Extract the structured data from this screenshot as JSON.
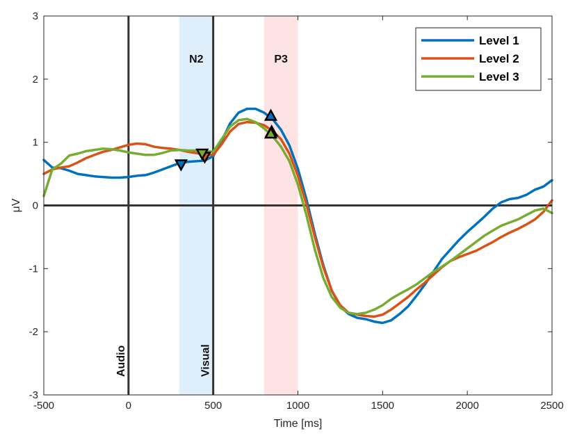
{
  "chart_data": {
    "type": "line",
    "xlabel": "Time [ms]",
    "ylabel": "μV",
    "xlim": [
      -500,
      2500
    ],
    "ylim": [
      -3,
      3
    ],
    "xticks": [
      -500,
      0,
      500,
      1000,
      1500,
      2000,
      2500
    ],
    "yticks": [
      -3,
      -2,
      -1,
      0,
      1,
      2,
      3
    ],
    "grid": false,
    "legend_position": "top-right",
    "bands": [
      {
        "label": "N2",
        "x_start": 300,
        "x_end": 500,
        "color": "#dfeefb"
      },
      {
        "label": "P3",
        "x_start": 800,
        "x_end": 1000,
        "color": "#fde3e3"
      }
    ],
    "events": [
      {
        "label": "Audio",
        "x": 0
      },
      {
        "label": "Visual",
        "x": 500
      }
    ],
    "series": [
      {
        "name": "Level 1",
        "color": "#0072bd",
        "points": [
          [
            -500,
            0.72
          ],
          [
            -450,
            0.6
          ],
          [
            -400,
            0.59
          ],
          [
            -350,
            0.55
          ],
          [
            -300,
            0.5
          ],
          [
            -250,
            0.48
          ],
          [
            -200,
            0.46
          ],
          [
            -150,
            0.45
          ],
          [
            -100,
            0.44
          ],
          [
            -50,
            0.44
          ],
          [
            0,
            0.45
          ],
          [
            50,
            0.47
          ],
          [
            100,
            0.48
          ],
          [
            150,
            0.52
          ],
          [
            200,
            0.57
          ],
          [
            250,
            0.62
          ],
          [
            300,
            0.67
          ],
          [
            350,
            0.69
          ],
          [
            400,
            0.7
          ],
          [
            450,
            0.71
          ],
          [
            500,
            0.78
          ],
          [
            550,
            1.02
          ],
          [
            600,
            1.3
          ],
          [
            650,
            1.47
          ],
          [
            700,
            1.53
          ],
          [
            750,
            1.53
          ],
          [
            800,
            1.47
          ],
          [
            850,
            1.37
          ],
          [
            900,
            1.2
          ],
          [
            950,
            0.95
          ],
          [
            1000,
            0.58
          ],
          [
            1050,
            0.1
          ],
          [
            1100,
            -0.45
          ],
          [
            1150,
            -0.95
          ],
          [
            1200,
            -1.35
          ],
          [
            1250,
            -1.6
          ],
          [
            1300,
            -1.72
          ],
          [
            1350,
            -1.78
          ],
          [
            1400,
            -1.8
          ],
          [
            1450,
            -1.84
          ],
          [
            1500,
            -1.86
          ],
          [
            1550,
            -1.82
          ],
          [
            1600,
            -1.72
          ],
          [
            1650,
            -1.6
          ],
          [
            1700,
            -1.43
          ],
          [
            1750,
            -1.25
          ],
          [
            1800,
            -1.05
          ],
          [
            1850,
            -0.85
          ],
          [
            1900,
            -0.7
          ],
          [
            1950,
            -0.55
          ],
          [
            2000,
            -0.42
          ],
          [
            2050,
            -0.3
          ],
          [
            2100,
            -0.18
          ],
          [
            2150,
            -0.05
          ],
          [
            2200,
            0.05
          ],
          [
            2250,
            0.1
          ],
          [
            2300,
            0.12
          ],
          [
            2350,
            0.17
          ],
          [
            2400,
            0.25
          ],
          [
            2450,
            0.3
          ],
          [
            2500,
            0.4
          ]
        ]
      },
      {
        "name": "Level 2",
        "color": "#d95319",
        "points": [
          [
            -500,
            0.5
          ],
          [
            -450,
            0.57
          ],
          [
            -400,
            0.6
          ],
          [
            -350,
            0.62
          ],
          [
            -300,
            0.68
          ],
          [
            -250,
            0.75
          ],
          [
            -200,
            0.8
          ],
          [
            -150,
            0.85
          ],
          [
            -100,
            0.88
          ],
          [
            -50,
            0.92
          ],
          [
            0,
            0.96
          ],
          [
            50,
            0.98
          ],
          [
            100,
            0.97
          ],
          [
            150,
            0.93
          ],
          [
            200,
            0.91
          ],
          [
            250,
            0.9
          ],
          [
            300,
            0.88
          ],
          [
            350,
            0.85
          ],
          [
            400,
            0.83
          ],
          [
            450,
            0.8
          ],
          [
            500,
            0.8
          ],
          [
            550,
            0.97
          ],
          [
            600,
            1.17
          ],
          [
            650,
            1.29
          ],
          [
            700,
            1.32
          ],
          [
            750,
            1.31
          ],
          [
            800,
            1.27
          ],
          [
            850,
            1.18
          ],
          [
            900,
            1.05
          ],
          [
            950,
            0.82
          ],
          [
            1000,
            0.47
          ],
          [
            1050,
            0.02
          ],
          [
            1100,
            -0.5
          ],
          [
            1150,
            -0.98
          ],
          [
            1200,
            -1.35
          ],
          [
            1250,
            -1.58
          ],
          [
            1300,
            -1.7
          ],
          [
            1350,
            -1.73
          ],
          [
            1400,
            -1.75
          ],
          [
            1450,
            -1.76
          ],
          [
            1500,
            -1.73
          ],
          [
            1550,
            -1.65
          ],
          [
            1600,
            -1.55
          ],
          [
            1650,
            -1.45
          ],
          [
            1700,
            -1.33
          ],
          [
            1750,
            -1.22
          ],
          [
            1800,
            -1.1
          ],
          [
            1850,
            -0.98
          ],
          [
            1900,
            -0.88
          ],
          [
            1950,
            -0.82
          ],
          [
            2000,
            -0.77
          ],
          [
            2050,
            -0.72
          ],
          [
            2100,
            -0.65
          ],
          [
            2150,
            -0.58
          ],
          [
            2200,
            -0.5
          ],
          [
            2250,
            -0.43
          ],
          [
            2300,
            -0.37
          ],
          [
            2350,
            -0.3
          ],
          [
            2400,
            -0.22
          ],
          [
            2450,
            -0.1
          ],
          [
            2500,
            0.08
          ]
        ]
      },
      {
        "name": "Level 3",
        "color": "#77ac30",
        "points": [
          [
            -500,
            0.15
          ],
          [
            -450,
            0.57
          ],
          [
            -400,
            0.66
          ],
          [
            -350,
            0.79
          ],
          [
            -300,
            0.82
          ],
          [
            -250,
            0.86
          ],
          [
            -200,
            0.88
          ],
          [
            -150,
            0.9
          ],
          [
            -100,
            0.89
          ],
          [
            -50,
            0.87
          ],
          [
            0,
            0.84
          ],
          [
            50,
            0.82
          ],
          [
            100,
            0.8
          ],
          [
            150,
            0.8
          ],
          [
            200,
            0.83
          ],
          [
            250,
            0.87
          ],
          [
            300,
            0.88
          ],
          [
            350,
            0.87
          ],
          [
            400,
            0.87
          ],
          [
            450,
            0.86
          ],
          [
            500,
            0.85
          ],
          [
            550,
            1.05
          ],
          [
            600,
            1.25
          ],
          [
            650,
            1.35
          ],
          [
            700,
            1.37
          ],
          [
            750,
            1.32
          ],
          [
            800,
            1.22
          ],
          [
            850,
            1.1
          ],
          [
            900,
            0.93
          ],
          [
            950,
            0.7
          ],
          [
            1000,
            0.33
          ],
          [
            1050,
            -0.15
          ],
          [
            1100,
            -0.7
          ],
          [
            1150,
            -1.15
          ],
          [
            1200,
            -1.45
          ],
          [
            1250,
            -1.62
          ],
          [
            1300,
            -1.7
          ],
          [
            1350,
            -1.72
          ],
          [
            1400,
            -1.7
          ],
          [
            1450,
            -1.65
          ],
          [
            1500,
            -1.58
          ],
          [
            1550,
            -1.48
          ],
          [
            1600,
            -1.4
          ],
          [
            1650,
            -1.33
          ],
          [
            1700,
            -1.25
          ],
          [
            1750,
            -1.15
          ],
          [
            1800,
            -1.05
          ],
          [
            1850,
            -0.97
          ],
          [
            1900,
            -0.88
          ],
          [
            1950,
            -0.78
          ],
          [
            2000,
            -0.68
          ],
          [
            2050,
            -0.58
          ],
          [
            2100,
            -0.48
          ],
          [
            2150,
            -0.4
          ],
          [
            2200,
            -0.32
          ],
          [
            2250,
            -0.27
          ],
          [
            2300,
            -0.22
          ],
          [
            2350,
            -0.15
          ],
          [
            2400,
            -0.08
          ],
          [
            2450,
            -0.05
          ],
          [
            2500,
            -0.12
          ]
        ]
      }
    ],
    "markers": [
      {
        "series": "Level 1",
        "x": 310,
        "y": 0.65,
        "shape": "triangle-down"
      },
      {
        "series": "Level 2",
        "x": 450,
        "y": 0.77,
        "shape": "triangle-down"
      },
      {
        "series": "Level 3",
        "x": 435,
        "y": 0.82,
        "shape": "triangle-down"
      },
      {
        "series": "Level 1",
        "x": 840,
        "y": 1.42,
        "shape": "triangle-up"
      },
      {
        "series": "Level 2",
        "x": 845,
        "y": 1.17,
        "shape": "triangle-up"
      },
      {
        "series": "Level 3",
        "x": 840,
        "y": 1.14,
        "shape": "triangle-up"
      }
    ]
  }
}
